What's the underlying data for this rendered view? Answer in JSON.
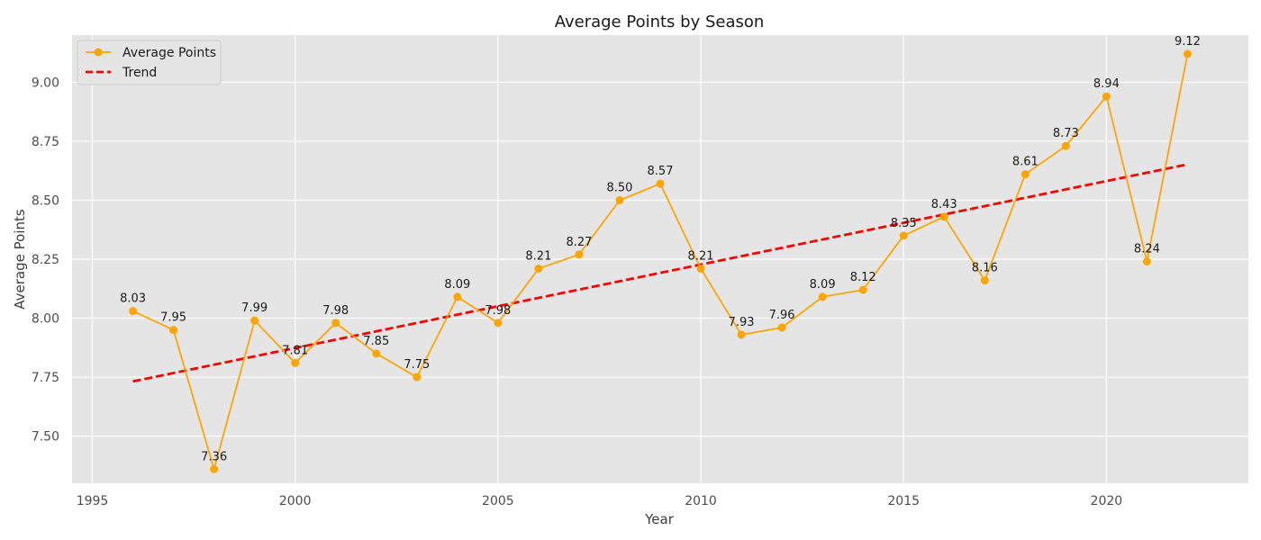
{
  "chart_data": {
    "type": "line",
    "title": "Average Points by Season",
    "xlabel": "Year",
    "ylabel": "Average Points",
    "xlim": [
      1994.5,
      2023.5
    ],
    "ylim": [
      7.3,
      9.2
    ],
    "xticks": [
      1995,
      2000,
      2005,
      2010,
      2015,
      2020
    ],
    "yticks": [
      7.5,
      7.75,
      8.0,
      8.25,
      8.5,
      8.75,
      9.0
    ],
    "ytick_labels": [
      "7.50",
      "7.75",
      "8.00",
      "8.25",
      "8.50",
      "8.75",
      "9.00"
    ],
    "grid": true,
    "legend_position": "top-left",
    "x": [
      1996,
      1997,
      1998,
      1999,
      2000,
      2001,
      2002,
      2003,
      2004,
      2005,
      2006,
      2007,
      2008,
      2009,
      2010,
      2011,
      2012,
      2013,
      2014,
      2015,
      2016,
      2017,
      2018,
      2019,
      2020,
      2021,
      2022
    ],
    "series": [
      {
        "name": "Average Points",
        "color": "#ffa500",
        "marker": "circle",
        "values": [
          8.03,
          7.95,
          7.36,
          7.99,
          7.81,
          7.98,
          7.85,
          7.75,
          8.09,
          7.98,
          8.21,
          8.27,
          8.5,
          8.57,
          8.21,
          7.93,
          7.96,
          8.09,
          8.12,
          8.35,
          8.43,
          8.16,
          8.61,
          8.73,
          8.94,
          8.24,
          9.12
        ],
        "labels": [
          "8.03",
          "7.95",
          "7.36",
          "7.99",
          "7.81",
          "7.98",
          "7.85",
          "7.75",
          "8.09",
          "7.98",
          "8.21",
          "8.27",
          "8.50",
          "8.57",
          "8.21",
          "7.93",
          "7.96",
          "8.09",
          "8.12",
          "8.35",
          "8.43",
          "8.16",
          "8.61",
          "8.73",
          "8.94",
          "8.24",
          "9.12"
        ]
      },
      {
        "name": "Trend",
        "color": "#ff0000",
        "style": "dashed",
        "x": [
          1996,
          2022
        ],
        "values": [
          7.732,
          8.652
        ]
      }
    ]
  }
}
